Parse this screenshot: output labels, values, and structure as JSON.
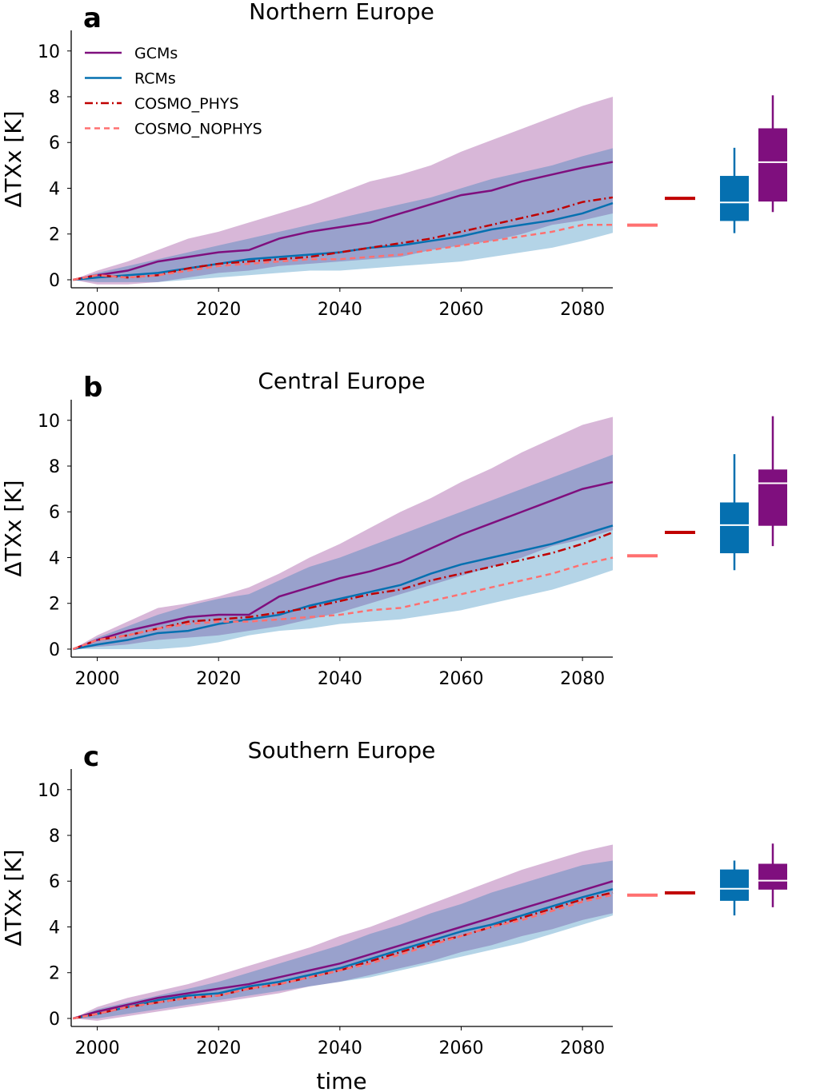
{
  "colors": {
    "GCMs": "#7f0f7e",
    "RCMs": "#0570b0",
    "COSMO_PHYS": "#c00000",
    "COSMO_NOPHYS": "#ff7070"
  },
  "xlabel": "time",
  "legend": [
    "GCMs",
    "RCMs",
    "COSMO_PHYS",
    "COSMO_NOPHYS"
  ],
  "chart_data": [
    {
      "type": "line",
      "label": "a",
      "title": "Northern Europe",
      "ylabel": "ΔTXx [K]",
      "xlim": [
        1995.7,
        2085
      ],
      "ylim": [
        -0.35,
        10.9
      ],
      "xticks": [
        2000,
        2020,
        2040,
        2060,
        2080
      ],
      "yticks": [
        0,
        2,
        4,
        6,
        8,
        10
      ],
      "x": [
        1996,
        2000,
        2005,
        2010,
        2015,
        2020,
        2025,
        2030,
        2035,
        2040,
        2045,
        2050,
        2055,
        2060,
        2065,
        2070,
        2075,
        2080,
        2085
      ],
      "series": [
        {
          "name": "GCMs",
          "values": [
            0,
            0.2,
            0.4,
            0.8,
            1.0,
            1.2,
            1.3,
            1.8,
            2.1,
            2.3,
            2.5,
            2.9,
            3.3,
            3.7,
            3.9,
            4.3,
            4.6,
            4.9,
            5.15
          ],
          "upper": [
            0,
            0.4,
            0.8,
            1.3,
            1.8,
            2.1,
            2.5,
            2.9,
            3.3,
            3.8,
            4.3,
            4.6,
            5.0,
            5.6,
            6.1,
            6.6,
            7.1,
            7.6,
            8.0
          ],
          "lower": [
            0,
            -0.2,
            -0.2,
            -0.1,
            0.1,
            0.3,
            0.4,
            0.6,
            0.7,
            0.8,
            0.9,
            1.0,
            1.3,
            1.5,
            1.7,
            2.0,
            2.4,
            2.6,
            2.9
          ]
        },
        {
          "name": "RCMs",
          "values": [
            0,
            0.1,
            0.2,
            0.3,
            0.5,
            0.7,
            0.9,
            1.0,
            1.1,
            1.2,
            1.4,
            1.5,
            1.7,
            1.9,
            2.2,
            2.4,
            2.6,
            2.9,
            3.35
          ],
          "upper": [
            0,
            0.3,
            0.6,
            0.9,
            1.2,
            1.5,
            1.8,
            2.1,
            2.4,
            2.7,
            3.0,
            3.3,
            3.6,
            4.0,
            4.4,
            4.7,
            5.0,
            5.4,
            5.75
          ],
          "lower": [
            0,
            -0.1,
            -0.1,
            -0.1,
            0.0,
            0.1,
            0.2,
            0.3,
            0.4,
            0.4,
            0.5,
            0.6,
            0.7,
            0.8,
            1.0,
            1.2,
            1.4,
            1.7,
            2.05
          ]
        },
        {
          "name": "COSMO_PHYS",
          "values": [
            0,
            0.2,
            0.1,
            0.2,
            0.5,
            0.7,
            0.8,
            0.9,
            1.0,
            1.2,
            1.4,
            1.6,
            1.8,
            2.1,
            2.4,
            2.7,
            3.0,
            3.4,
            3.6
          ]
        },
        {
          "name": "COSMO_NOPHYS",
          "values": [
            0,
            0.2,
            0.1,
            0.2,
            0.4,
            0.6,
            0.7,
            0.8,
            0.9,
            0.9,
            1.0,
            1.1,
            1.3,
            1.5,
            1.7,
            1.9,
            2.1,
            2.4,
            2.4
          ]
        }
      ],
      "end_values": {
        "COSMO_NOPHYS": 2.39,
        "COSMO_PHYS": 3.56
      },
      "boxplots": {
        "RCMs": {
          "min": 2.04,
          "q1": 2.57,
          "median": 3.38,
          "q3": 4.54,
          "max": 5.77
        },
        "GCMs": {
          "min": 2.96,
          "q1": 3.42,
          "median": 5.14,
          "q3": 6.62,
          "max": 8.06
        }
      }
    },
    {
      "type": "line",
      "label": "b",
      "title": "Central Europe",
      "ylabel": "ΔTXx [K]",
      "xlim": [
        1995.7,
        2085
      ],
      "ylim": [
        -0.35,
        10.9
      ],
      "xticks": [
        2000,
        2020,
        2040,
        2060,
        2080
      ],
      "yticks": [
        0,
        2,
        4,
        6,
        8,
        10
      ],
      "x": [
        1996,
        2000,
        2005,
        2010,
        2015,
        2020,
        2025,
        2030,
        2035,
        2040,
        2045,
        2050,
        2055,
        2060,
        2065,
        2070,
        2075,
        2080,
        2085
      ],
      "series": [
        {
          "name": "GCMs",
          "values": [
            0,
            0.4,
            0.8,
            1.1,
            1.4,
            1.5,
            1.5,
            2.3,
            2.7,
            3.1,
            3.4,
            3.8,
            4.4,
            5.0,
            5.5,
            6.0,
            6.5,
            7.0,
            7.3
          ],
          "upper": [
            0,
            0.6,
            1.2,
            1.8,
            2.0,
            2.3,
            2.7,
            3.3,
            4.0,
            4.6,
            5.3,
            6.0,
            6.6,
            7.3,
            7.9,
            8.6,
            9.2,
            9.8,
            10.15
          ],
          "lower": [
            0,
            0.1,
            0.2,
            0.4,
            0.5,
            0.6,
            0.8,
            1.0,
            1.3,
            1.6,
            2.0,
            2.4,
            2.8,
            3.2,
            3.6,
            4.0,
            4.5,
            4.8,
            5.2
          ]
        },
        {
          "name": "RCMs",
          "values": [
            0,
            0.2,
            0.4,
            0.7,
            0.8,
            1.1,
            1.3,
            1.5,
            1.9,
            2.2,
            2.5,
            2.8,
            3.3,
            3.7,
            4.0,
            4.3,
            4.6,
            5.0,
            5.4
          ],
          "upper": [
            0,
            0.5,
            1.0,
            1.5,
            1.9,
            2.2,
            2.4,
            3.0,
            3.6,
            4.0,
            4.5,
            5.0,
            5.5,
            6.0,
            6.5,
            7.0,
            7.5,
            8.0,
            8.5
          ],
          "lower": [
            0,
            0,
            0,
            0,
            0.1,
            0.3,
            0.6,
            0.8,
            0.9,
            1.1,
            1.2,
            1.3,
            1.5,
            1.7,
            2.0,
            2.3,
            2.6,
            3.0,
            3.45
          ]
        },
        {
          "name": "COSMO_PHYS",
          "values": [
            0,
            0.4,
            0.6,
            0.9,
            1.2,
            1.3,
            1.4,
            1.6,
            1.8,
            2.1,
            2.4,
            2.6,
            3.0,
            3.3,
            3.6,
            3.9,
            4.2,
            4.6,
            5.1
          ]
        },
        {
          "name": "COSMO_NOPHYS",
          "values": [
            0,
            0.4,
            0.6,
            0.9,
            1.1,
            1.2,
            1.2,
            1.3,
            1.4,
            1.5,
            1.7,
            1.8,
            2.1,
            2.4,
            2.7,
            3.0,
            3.3,
            3.7,
            4.0
          ]
        }
      ],
      "end_values": {
        "COSMO_NOPHYS": 4.08,
        "COSMO_PHYS": 5.1
      },
      "boxplots": {
        "RCMs": {
          "min": 3.45,
          "q1": 4.19,
          "median": 5.42,
          "q3": 6.41,
          "max": 8.52
        },
        "GCMs": {
          "min": 4.5,
          "q1": 5.39,
          "median": 7.25,
          "q3": 7.85,
          "max": 10.18
        }
      }
    },
    {
      "type": "line",
      "label": "c",
      "title": "Southern Europe",
      "ylabel": "ΔTXx [K]",
      "xlim": [
        1995.7,
        2085
      ],
      "ylim": [
        -0.35,
        10.9
      ],
      "xticks": [
        2000,
        2020,
        2040,
        2060,
        2080
      ],
      "yticks": [
        0,
        2,
        4,
        6,
        8,
        10
      ],
      "x": [
        1996,
        2000,
        2005,
        2010,
        2015,
        2020,
        2025,
        2030,
        2035,
        2040,
        2045,
        2050,
        2055,
        2060,
        2065,
        2070,
        2075,
        2080,
        2085
      ],
      "series": [
        {
          "name": "GCMs",
          "values": [
            0,
            0.3,
            0.6,
            0.9,
            1.1,
            1.3,
            1.5,
            1.8,
            2.1,
            2.4,
            2.8,
            3.2,
            3.6,
            4.0,
            4.4,
            4.8,
            5.2,
            5.6,
            6.0
          ],
          "upper": [
            0,
            0.5,
            0.9,
            1.2,
            1.5,
            1.9,
            2.3,
            2.7,
            3.1,
            3.6,
            4.0,
            4.5,
            5.0,
            5.5,
            6.0,
            6.5,
            6.9,
            7.3,
            7.6
          ],
          "lower": [
            0,
            -0.1,
            0.1,
            0.3,
            0.5,
            0.7,
            0.9,
            1.1,
            1.4,
            1.6,
            1.9,
            2.2,
            2.5,
            2.9,
            3.2,
            3.6,
            3.9,
            4.3,
            4.6
          ]
        },
        {
          "name": "RCMs",
          "values": [
            0,
            0.2,
            0.5,
            0.8,
            1.0,
            1.1,
            1.4,
            1.6,
            1.9,
            2.2,
            2.6,
            3.0,
            3.4,
            3.8,
            4.1,
            4.5,
            4.9,
            5.3,
            5.65
          ],
          "upper": [
            0,
            0.4,
            0.7,
            1.0,
            1.3,
            1.6,
            2.0,
            2.4,
            2.8,
            3.2,
            3.7,
            4.1,
            4.6,
            5.0,
            5.5,
            5.9,
            6.3,
            6.7,
            6.9
          ],
          "lower": [
            0,
            0,
            0.2,
            0.4,
            0.6,
            0.8,
            1.0,
            1.2,
            1.4,
            1.6,
            1.8,
            2.1,
            2.4,
            2.7,
            3.0,
            3.3,
            3.7,
            4.1,
            4.5
          ]
        },
        {
          "name": "COSMO_PHYS",
          "values": [
            0,
            0.2,
            0.5,
            0.7,
            0.9,
            1.0,
            1.3,
            1.5,
            1.8,
            2.1,
            2.5,
            2.9,
            3.3,
            3.6,
            4.0,
            4.4,
            4.8,
            5.2,
            5.5
          ]
        },
        {
          "name": "COSMO_NOPHYS",
          "values": [
            0,
            0.2,
            0.5,
            0.7,
            0.9,
            1.0,
            1.3,
            1.5,
            1.8,
            2.1,
            2.4,
            2.8,
            3.2,
            3.6,
            4.0,
            4.3,
            4.7,
            5.1,
            5.4
          ]
        }
      ],
      "end_values": {
        "COSMO_NOPHYS": 5.39,
        "COSMO_PHYS": 5.49
      },
      "boxplots": {
        "RCMs": {
          "min": 4.5,
          "q1": 5.14,
          "median": 5.67,
          "q3": 6.51,
          "max": 6.9
        },
        "GCMs": {
          "min": 4.86,
          "q1": 5.63,
          "median": 6.02,
          "q3": 6.76,
          "max": 7.64
        }
      }
    }
  ]
}
